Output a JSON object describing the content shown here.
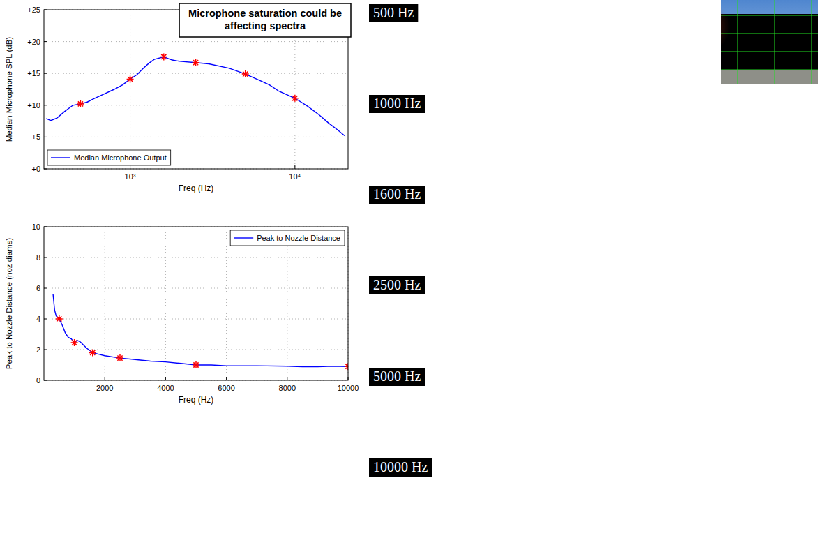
{
  "chart_data": [
    {
      "type": "line",
      "annotation": "Microphone saturation could be affecting spectra",
      "x_label": "Freq (Hz)",
      "y_label": "Median Microphone SPL (dB)",
      "log": "x",
      "grid": true,
      "legend": "lower left",
      "xlim": [
        300,
        21000
      ],
      "xticks": [
        {
          "value": 1000,
          "label": "10³"
        },
        {
          "value": 10000,
          "label": "10⁴"
        }
      ],
      "ylim": [
        0,
        25
      ],
      "yticks": [
        {
          "value": 0,
          "label": "+0"
        },
        {
          "value": 5,
          "label": "+5"
        },
        {
          "value": 10,
          "label": "+10"
        },
        {
          "value": 15,
          "label": "+15"
        },
        {
          "value": 20,
          "label": "+20"
        },
        {
          "value": 25,
          "label": "+25"
        }
      ],
      "series": [
        {
          "name": "Median Microphone Output",
          "color": "#0000ff",
          "line_style": "solid",
          "x": [
            310,
            330,
            360,
            400,
            450,
            500,
            550,
            600,
            700,
            800,
            900,
            1000,
            1100,
            1200,
            1300,
            1400,
            1600,
            1800,
            2000,
            2500,
            3000,
            4000,
            5000,
            6000,
            7000,
            8000,
            10000,
            12000,
            14000,
            16000,
            18000,
            20000
          ],
          "values": [
            7.9,
            7.6,
            8.0,
            9.0,
            10.0,
            10.2,
            10.5,
            11.0,
            11.8,
            12.5,
            13.2,
            14.1,
            14.8,
            15.8,
            16.6,
            17.2,
            17.6,
            17.1,
            16.9,
            16.7,
            16.5,
            15.8,
            14.9,
            14.0,
            13.2,
            12.2,
            11.1,
            9.8,
            8.5,
            7.2,
            6.2,
            5.2
          ]
        },
        {
          "type": "scatter",
          "color": "#ff0000",
          "marker": "asterisk",
          "x": [
            500,
            1000,
            1600,
            2500,
            5000,
            10000
          ],
          "values": [
            10.2,
            14.1,
            17.6,
            16.7,
            14.9,
            11.1
          ]
        }
      ]
    },
    {
      "type": "line",
      "x_label": "Freq (Hz)",
      "y_label": "Peak to Nozzle Distance (noz diams)",
      "grid": true,
      "legend": "upper right",
      "xlim": [
        0,
        10000
      ],
      "xticks": [
        2000,
        4000,
        6000,
        8000,
        10000
      ],
      "ylim": [
        0,
        10
      ],
      "yticks": [
        0,
        2,
        4,
        6,
        8,
        10
      ],
      "series": [
        {
          "name": "Peak to Nozzle Distance",
          "color": "#0000ff",
          "line_style": "solid",
          "x": [
            300,
            350,
            400,
            500,
            600,
            700,
            800,
            900,
            1000,
            1100,
            1200,
            1300,
            1400,
            1600,
            1800,
            2000,
            2500,
            3000,
            3500,
            4000,
            4500,
            5000,
            5500,
            6000,
            7000,
            8000,
            8500,
            9000,
            9500,
            10000
          ],
          "values": [
            5.6,
            4.6,
            4.2,
            4.0,
            3.6,
            3.1,
            2.8,
            2.7,
            2.45,
            2.6,
            2.5,
            2.3,
            2.1,
            1.8,
            1.7,
            1.6,
            1.45,
            1.35,
            1.25,
            1.2,
            1.1,
            1.0,
            1.0,
            0.95,
            0.95,
            0.92,
            0.88,
            0.88,
            0.92,
            0.9
          ]
        },
        {
          "type": "scatter",
          "color": "#ff0000",
          "marker": "asterisk",
          "x": [
            500,
            1000,
            1600,
            2500,
            5000,
            10000
          ],
          "values": [
            4.0,
            2.45,
            1.8,
            1.45,
            1.0,
            0.9
          ]
        }
      ]
    }
  ],
  "images": [
    {
      "label": "500 Hz"
    },
    {
      "label": "1000 Hz"
    },
    {
      "label": "1600 Hz"
    },
    {
      "label": "2500 Hz"
    },
    {
      "label": "5000 Hz"
    },
    {
      "label": "10000 Hz"
    }
  ]
}
